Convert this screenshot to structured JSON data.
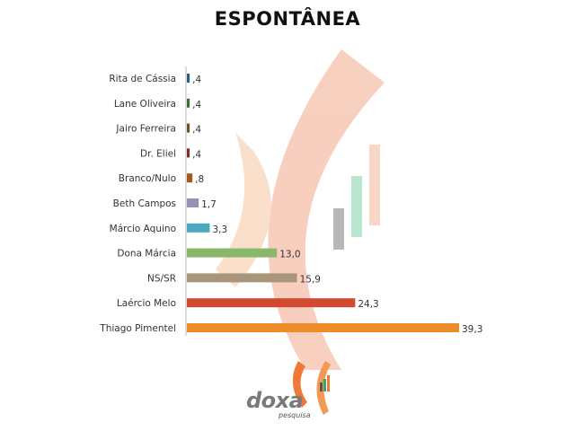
{
  "title": "ESPONTÂNEA",
  "logo": {
    "word": "doxa",
    "sub": "pesquisa"
  },
  "chart_data": {
    "type": "bar",
    "orientation": "horizontal",
    "title": "ESPONTÂNEA",
    "xlabel": "",
    "ylabel": "",
    "xlim": [
      0,
      39.3
    ],
    "grid": false,
    "categories": [
      "Rita de Cássia",
      "Lane Oliveira",
      "Jairo Ferreira",
      "Dr. Eliel",
      "Branco/Nulo",
      "Beth Campos",
      "Márcio Aquino",
      "Dona Márcia",
      "NS/SR",
      "Laércio Melo",
      "Thiago Pimentel"
    ],
    "values": [
      0.4,
      0.4,
      0.4,
      0.4,
      0.8,
      1.7,
      3.3,
      13.0,
      15.9,
      24.3,
      39.3
    ],
    "value_labels": [
      ",4",
      ",4",
      ",4",
      ",4",
      ",8",
      "1,7",
      "3,3",
      "13,0",
      "15,9",
      "24,3",
      "39,3"
    ],
    "colors": [
      "#2e5f7a",
      "#3f6b3a",
      "#6b5233",
      "#7a2e2a",
      "#a35a1e",
      "#9a8fb5",
      "#4aa8bf",
      "#8ab86a",
      "#a8967a",
      "#cf4a30",
      "#ee8c2a"
    ]
  }
}
